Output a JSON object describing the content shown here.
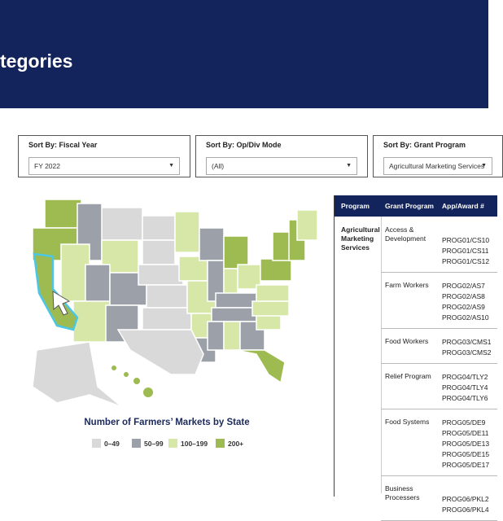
{
  "header": {
    "title": "tegories"
  },
  "filters": [
    {
      "label": "Sort By: Fiscal Year",
      "value": "FY 2022"
    },
    {
      "label": "Sort By: Op/Div Mode",
      "value": "(All)"
    },
    {
      "label": "Sort By: Grant Program",
      "value": "Agricultural Marketing Services"
    }
  ],
  "map": {
    "title": "Number of Farmers’ Markets by State",
    "legend": [
      {
        "label": "0–49",
        "color": "#d9d9d9"
      },
      {
        "label": "50–99",
        "color": "#9ca1a9"
      },
      {
        "label": "100–199",
        "color": "#d6e7a8"
      },
      {
        "label": "200+",
        "color": "#9dbb51"
      }
    ]
  },
  "table": {
    "headers": [
      "Program",
      "Grant Program",
      "App/Award #"
    ],
    "program": "Agricultural Marketing Services",
    "groups": [
      {
        "grant": "Access & Development",
        "awards": [
          "PROG01/CS10",
          "PROG01/CS11",
          "PROG01/CS12"
        ]
      },
      {
        "grant": "Farm Workers",
        "awards": [
          "PROG02/AS7",
          "PROG02/AS8",
          "PROG02/AS9",
          "PROG02/AS10"
        ]
      },
      {
        "grant": "Food Workers",
        "awards": [
          "PROG03/CMS1",
          "PROG03/CMS2"
        ]
      },
      {
        "grant": "Relief Program",
        "awards": [
          "PROG04/TLY2",
          "PROG04/TLY4",
          "PROG04/TLY6"
        ]
      },
      {
        "grant": "Food Systems",
        "awards": [
          "PROG05/DE9",
          "PROG05/DE11",
          "PROG05/DE13",
          "PROG05/DE15",
          "PROG05/DE17"
        ]
      },
      {
        "grant": "Business Processers",
        "awards": [
          "PROG06/PKL2",
          "PROG06/PKL4"
        ]
      }
    ]
  }
}
